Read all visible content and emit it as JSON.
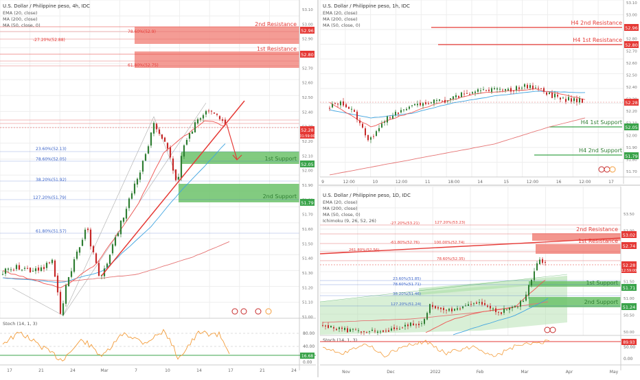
{
  "colors": {
    "resistance": "#e53935",
    "resistance_zone": "#f28b82",
    "support": "#3aa34a",
    "support_zone": "#6cc26a",
    "ema": "#ef5350",
    "ma200": "#e57373",
    "ma50": "#3fa4e0",
    "stoch": "#f39c3a",
    "fib": "#3a63c9",
    "candle_up": "#2e7d32",
    "candle_down": "#c62828",
    "grid": "#eeeeee",
    "axis_text": "#666666"
  },
  "panels": {
    "h4": {
      "title": "U.S. Dollar / Philippine peso, 4h, IDC",
      "indicators": [
        "EMA (20, close)",
        "MA (200, close)",
        "MA (50, close, 0)"
      ],
      "resistance_2": "2nd Resistance",
      "resistance_1": "1st Resistance",
      "support_1": "1st Support",
      "support_2": "2nd Support",
      "fib_r1a": "78.60%(52.9)",
      "fib_r1b": "-27.20%(52.88)",
      "fib_r2": "61.80%(52.75)",
      "fib_s1": "23.60%(52.13)",
      "fib_s2": "78.60%(52.05)",
      "fib_s3": "38.20%(51.92)",
      "fib_s4": "127.20%(51.79)",
      "fib_s5": "61.80%(51.57)",
      "tag_r2": "52.96",
      "tag_r1": "52.80",
      "tag_price": "52.28",
      "tag_time": "01:59:00",
      "tag_s1": "52.05",
      "tag_s2": "51.79",
      "tag_stoch": "16.68",
      "stoch_label": "Stoch (14, 1, 3)",
      "yaxis": [
        "53.10",
        "53.00",
        "52.90",
        "52.80",
        "52.70",
        "52.60",
        "52.50",
        "52.40",
        "52.30",
        "52.20",
        "52.10",
        "52.00",
        "51.90",
        "51.80",
        "51.70",
        "51.60",
        "51.50",
        "51.40",
        "51.30",
        "51.20",
        "51.10",
        "51.00"
      ],
      "stoch_axis": [
        "80.00",
        "40.00",
        "0.00"
      ],
      "xaxis": [
        "17",
        "21",
        "24",
        "Mar",
        "7",
        "10",
        "14",
        "17",
        "21",
        "24"
      ]
    },
    "h1": {
      "title": "U.S. Dollar / Philippine peso, 1h, IDC",
      "indicators": [
        "EMA (20, close)",
        "MA (200, close)",
        "MA (50, close, 0)"
      ],
      "resistance_2": "H4 2nd Resistance",
      "resistance_1": "H4 1st Resistance",
      "support_1": "H4 1st Support",
      "support_2": "H4 2nd Support",
      "tag_r2": "52.96",
      "tag_r1": "52.80",
      "tag_price": "52.28",
      "tag_s1": "52.05",
      "tag_s2": "51.79",
      "yaxis": [
        "53.10",
        "53.00",
        "52.90",
        "52.80",
        "52.70",
        "52.60",
        "52.50",
        "52.40",
        "52.30",
        "52.20",
        "52.10",
        "52.00",
        "51.90",
        "51.80",
        "51.70"
      ],
      "xaxis": [
        "9",
        "12:00",
        "10",
        "12:00",
        "11",
        "18:00",
        "14",
        "15",
        "12:00",
        "16",
        "12:00",
        "17"
      ]
    },
    "d1": {
      "title": "U.S. Dollar / Philippine peso, 1D, IDC",
      "indicators": [
        "EMA (20, close)",
        "MA (200, close)",
        "MA (50, close, 0)",
        "Ichimoku (9, 26, 52, 26)"
      ],
      "resistance_2": "2nd Resistance",
      "resistance_1": "1st Resistance",
      "support_1": "1st Support",
      "support_2": "2nd Support",
      "fib_a": "-27.20%(53.21)",
      "fib_b": "127.20%(53.23)",
      "fib_c": "-61.80%(52.76)",
      "fib_d": "100.00%(52.74)",
      "fib_e": "261.80%(52.56)",
      "fib_f": "78.60%(52.35)",
      "fib_g": "23.60%(51.85)",
      "fib_h": "78.60%(51.71)",
      "fib_i": "38.20%(51.46)",
      "fib_j": "127.20%(51.24)",
      "tag_r2": "53.02",
      "tag_r1": "52.74",
      "tag_price": "52.28",
      "tag_time": "12:59:00",
      "tag_s1": "51.71",
      "tag_s2": "51.24",
      "tag_stoch": "89.93",
      "stoch_label": "Stoch (14, 1, 3)",
      "yaxis": [
        "53.50",
        "53.00",
        "52.50",
        "52.00",
        "51.50",
        "51.00",
        "50.50",
        "50.00"
      ],
      "stoch_axis": [
        "50.00",
        "0.00"
      ],
      "xaxis": [
        "Nov",
        "Dec",
        "2022",
        "Feb",
        "Mar",
        "Apr",
        "May"
      ]
    }
  }
}
